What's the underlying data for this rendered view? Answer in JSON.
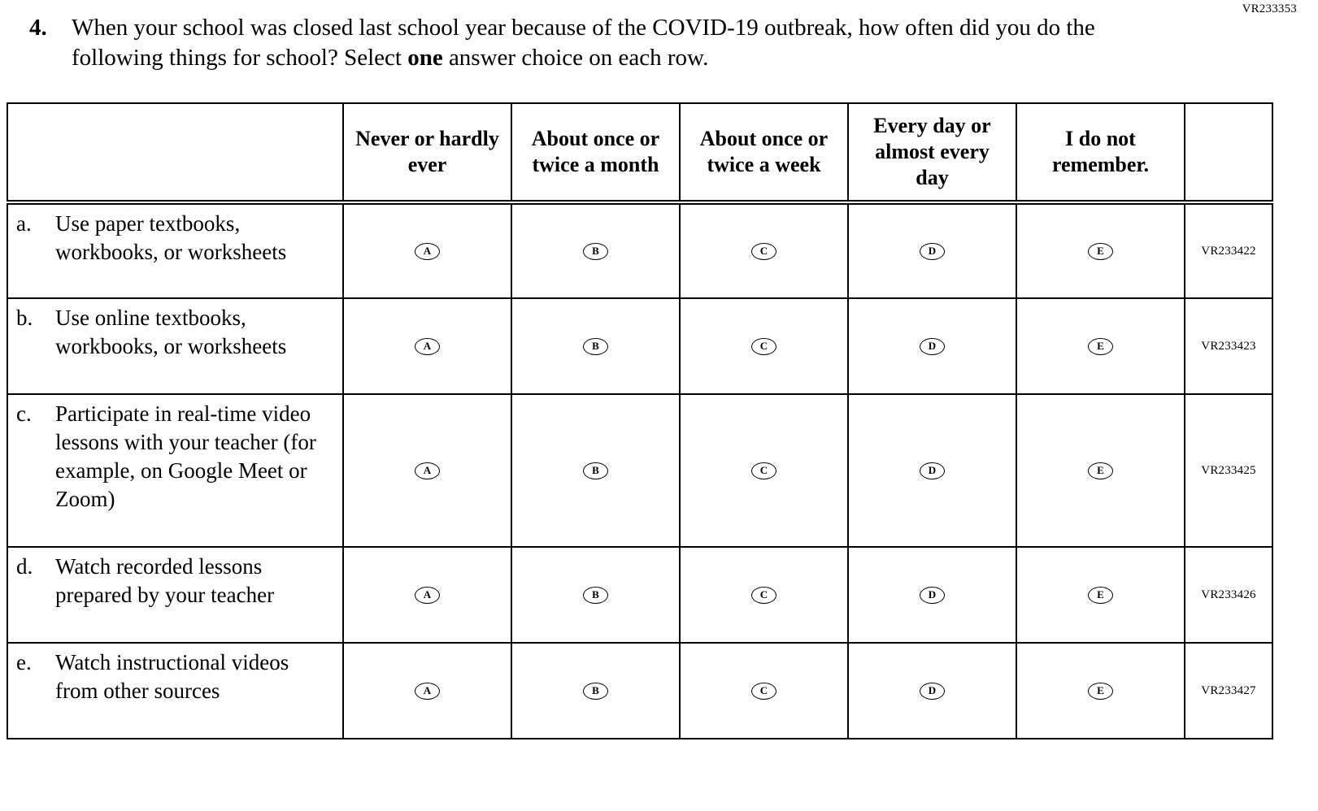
{
  "page": {
    "top_code": "VR233353",
    "question": {
      "number": "4.",
      "text_before_bold": "When your school was closed last school year because of the COVID-19 outbreak, how often did you do the following things for school? Select ",
      "bold": "one",
      "text_after_bold": " answer choice on each row."
    }
  },
  "table": {
    "columns": [
      "Never or hardly ever",
      "About once or twice a month",
      "About once or twice a week",
      "Every day or almost every day",
      "I do not remember."
    ],
    "options": [
      "A",
      "B",
      "C",
      "D",
      "E"
    ],
    "rows": [
      {
        "letter": "a.",
        "text": "Use paper textbooks, workbooks, or worksheets",
        "code": "VR233422"
      },
      {
        "letter": "b.",
        "text": "Use online textbooks, workbooks, or worksheets",
        "code": "VR233423"
      },
      {
        "letter": "c.",
        "text": "Participate in real-time video lessons with your teacher (for example, on Google Meet or Zoom)",
        "code": "VR233425"
      },
      {
        "letter": "d.",
        "text": "Watch recorded lessons prepared by your teacher",
        "code": "VR233426"
      },
      {
        "letter": "e.",
        "text": "Watch instructional videos from other sources",
        "code": "VR233427"
      }
    ]
  }
}
